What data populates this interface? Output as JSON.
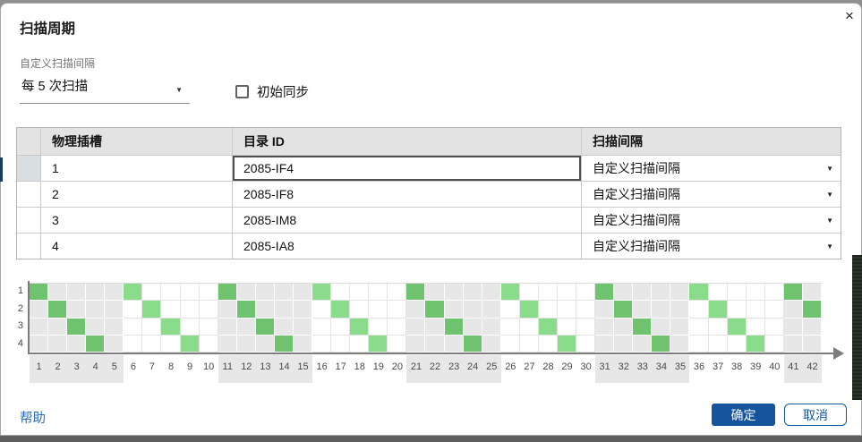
{
  "dialog": {
    "title": "扫描周期",
    "close_icon": "×"
  },
  "interval_field": {
    "label": "自定义扫描间隔",
    "value": "每 5 次扫描",
    "dropdown_icon": "▼"
  },
  "sync_checkbox": {
    "label": "初始同步",
    "checked": false
  },
  "table": {
    "headers": {
      "selector": "",
      "slot": "物理插槽",
      "catalog": "目录 ID",
      "interval": "扫描间隔"
    },
    "dropdown_icon": "▼",
    "rows": [
      {
        "slot": "1",
        "catalog_id": "2085-IF4",
        "interval": "自定义扫描间隔",
        "selected": true,
        "editing": true
      },
      {
        "slot": "2",
        "catalog_id": "2085-IF8",
        "interval": "自定义扫描间隔",
        "selected": false,
        "editing": false
      },
      {
        "slot": "3",
        "catalog_id": "2085-IM8",
        "interval": "自定义扫描间隔",
        "selected": false,
        "editing": false
      },
      {
        "slot": "4",
        "catalog_id": "2085-IA8",
        "interval": "自定义扫描间隔",
        "selected": false,
        "editing": false
      }
    ]
  },
  "chart_data": {
    "type": "heatmap",
    "title": "",
    "description": "Scan-cycle timeline: green cell = slot scanned at that scan tick; diagonal pattern repeats every 5 scans",
    "row_labels": [
      "1",
      "2",
      "3",
      "4"
    ],
    "x_ticks": [
      1,
      2,
      3,
      4,
      5,
      6,
      7,
      8,
      9,
      10,
      11,
      12,
      13,
      14,
      15,
      16,
      17,
      18,
      19,
      20,
      21,
      22,
      23,
      24,
      25,
      26,
      27,
      28,
      29,
      30,
      31,
      32,
      33,
      34,
      35,
      36,
      37,
      38,
      39,
      40,
      41,
      42
    ],
    "series": [
      {
        "row": "1",
        "scan_columns": [
          1,
          6,
          11,
          16,
          21,
          26,
          31,
          36,
          41
        ]
      },
      {
        "row": "2",
        "scan_columns": [
          2,
          7,
          12,
          17,
          22,
          27,
          32,
          37,
          42
        ]
      },
      {
        "row": "3",
        "scan_columns": [
          3,
          8,
          13,
          18,
          23,
          28,
          33,
          38
        ]
      },
      {
        "row": "4",
        "scan_columns": [
          4,
          9,
          14,
          19,
          24,
          29,
          34,
          39
        ]
      }
    ],
    "shaded_column_blocks": [
      [
        1,
        5
      ],
      [
        11,
        15
      ],
      [
        21,
        25
      ],
      [
        31,
        35
      ],
      [
        41,
        42
      ]
    ],
    "x_axis_arrow": true,
    "colors": {
      "green_on_shaded": "#6fc36f",
      "green_on_plain": "#8adc8a",
      "shaded_bg": "#e7e7e7",
      "plain_bg": "#ffffff",
      "axis": "#7c7c7c"
    }
  },
  "footer": {
    "help": "帮助",
    "ok": "确定",
    "cancel": "取消"
  },
  "colors": {
    "accent_blue": "#17549e",
    "link_blue": "#2b6cb5",
    "header_bg": "#e3e3e3",
    "selection_navy": "#1b3a5f"
  }
}
